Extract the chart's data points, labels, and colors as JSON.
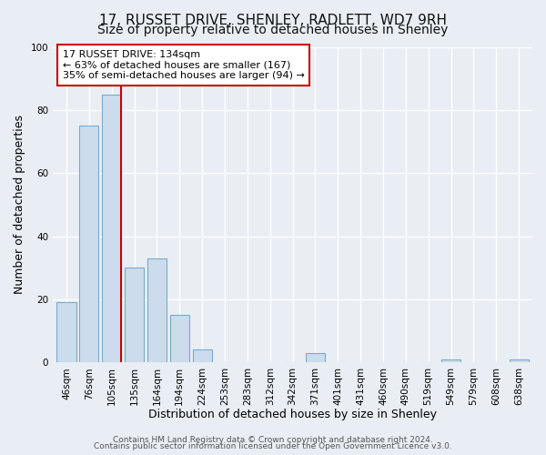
{
  "title": "17, RUSSET DRIVE, SHENLEY, RADLETT, WD7 9RH",
  "subtitle": "Size of property relative to detached houses in Shenley",
  "xlabel": "Distribution of detached houses by size in Shenley",
  "ylabel": "Number of detached properties",
  "bar_labels": [
    "46sqm",
    "76sqm",
    "105sqm",
    "135sqm",
    "164sqm",
    "194sqm",
    "224sqm",
    "253sqm",
    "283sqm",
    "312sqm",
    "342sqm",
    "371sqm",
    "401sqm",
    "431sqm",
    "460sqm",
    "490sqm",
    "519sqm",
    "549sqm",
    "579sqm",
    "608sqm",
    "638sqm"
  ],
  "bar_values": [
    19,
    75,
    85,
    30,
    33,
    15,
    4,
    0,
    0,
    0,
    0,
    3,
    0,
    0,
    0,
    0,
    0,
    1,
    0,
    0,
    1
  ],
  "bar_color": "#ccdcec",
  "bar_edge_color": "#7aaac8",
  "vline_color": "#cc0000",
  "annotation_title": "17 RUSSET DRIVE: 134sqm",
  "annotation_line1": "← 63% of detached houses are smaller (167)",
  "annotation_line2": "35% of semi-detached houses are larger (94) →",
  "annotation_box_color": "#ffffff",
  "annotation_box_edge_color": "#cc0000",
  "ylim": [
    0,
    100
  ],
  "yticks": [
    0,
    20,
    40,
    60,
    80,
    100
  ],
  "footer1": "Contains HM Land Registry data © Crown copyright and database right 2024.",
  "footer2": "Contains public sector information licensed under the Open Government Licence v3.0.",
  "background_color": "#e8eef4",
  "plot_bg_color": "#e8eef4",
  "grid_color": "#ffffff",
  "title_fontsize": 11,
  "subtitle_fontsize": 10,
  "axis_label_fontsize": 9,
  "tick_fontsize": 7.5,
  "ann_fontsize": 8.0,
  "footer_fontsize": 6.5
}
